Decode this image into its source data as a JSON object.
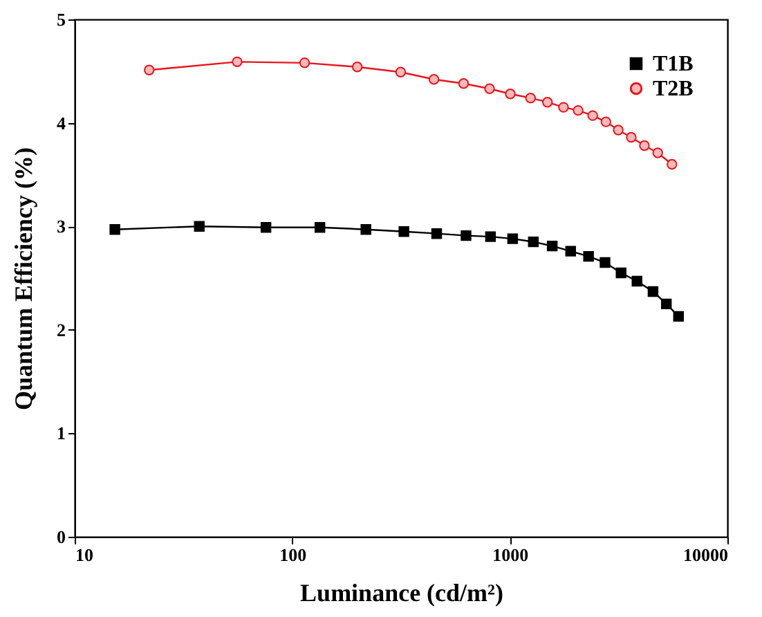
{
  "chart_data": {
    "type": "line",
    "xlabel": "Luminance (cd/m²)",
    "ylabel": "Quantum Efficiency (%)",
    "log": "x",
    "xlim": [
      10,
      10000
    ],
    "xticks": [
      10,
      100,
      1000,
      10000
    ],
    "ylim": [
      0,
      5
    ],
    "yticks": [
      0,
      1,
      2,
      3,
      4,
      5
    ],
    "grid": false,
    "legend": "top right",
    "line_style": "solid",
    "series": [
      {
        "name": "T1B",
        "color": "#000000",
        "marker": "square",
        "x": [
          15.3,
          37.4,
          75.7,
          134,
          218,
          326,
          461,
          629,
          815,
          1030,
          1282,
          1566,
          1903,
          2300,
          2738,
          3245,
          3840,
          4550,
          5240,
          5960
        ],
        "values": [
          2.97,
          3.0,
          2.99,
          2.99,
          2.97,
          2.95,
          2.93,
          2.91,
          2.9,
          2.88,
          2.85,
          2.81,
          2.76,
          2.71,
          2.65,
          2.55,
          2.47,
          2.37,
          2.25,
          2.13
        ]
      },
      {
        "name": "T2B",
        "color": "#e8141c",
        "marker": "circle",
        "x": [
          22,
          55.8,
          114,
          199,
          315,
          448,
          613,
          807,
          1005,
          1245,
          1489,
          1765,
          2060,
          2405,
          2765,
          3150,
          3615,
          4155,
          4785,
          5560
        ],
        "values": [
          4.51,
          4.59,
          4.58,
          4.54,
          4.49,
          4.42,
          4.38,
          4.33,
          4.28,
          4.24,
          4.2,
          4.15,
          4.12,
          4.07,
          4.01,
          3.93,
          3.86,
          3.78,
          3.71,
          3.6
        ]
      }
    ]
  }
}
